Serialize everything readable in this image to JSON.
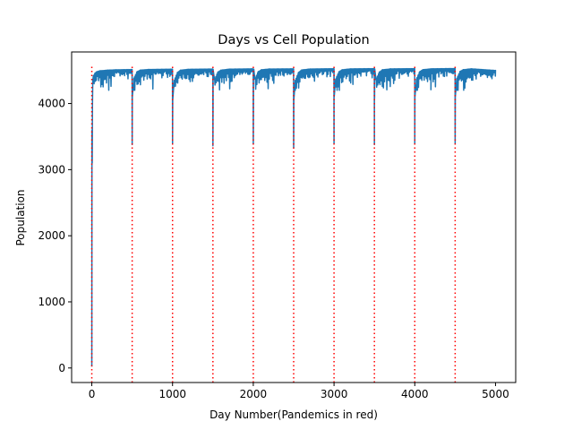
{
  "chart_data": {
    "type": "line",
    "title": "Days vs Cell Population",
    "xlabel": "Day Number(Pandemics in red)",
    "ylabel": "Population",
    "xlim": [
      -250,
      5250
    ],
    "ylim": [
      -220,
      4780
    ],
    "x_ticks": [
      0,
      1000,
      2000,
      3000,
      4000,
      5000
    ],
    "y_ticks": [
      0,
      1000,
      2000,
      3000,
      4000
    ],
    "grid": false,
    "line_color": "#1f77b4",
    "pandemic_color": "#ff0000",
    "pandemic_days": [
      0,
      500,
      1000,
      1500,
      2000,
      2500,
      3000,
      3500,
      4000,
      4500
    ],
    "series": [
      {
        "values_description_x": [
          0,
          5000
        ],
        "points": [
          [
            0,
            20
          ],
          [
            2,
            3600
          ],
          [
            5,
            3100
          ],
          [
            8,
            4000
          ],
          [
            12,
            4350
          ],
          [
            20,
            4420
          ],
          [
            40,
            4460
          ],
          [
            60,
            4480
          ],
          [
            100,
            4495
          ],
          [
            150,
            4500
          ],
          [
            200,
            4505
          ],
          [
            300,
            4510
          ],
          [
            400,
            4512
          ],
          [
            499,
            4515
          ],
          [
            500,
            3380
          ],
          [
            502,
            4100
          ],
          [
            520,
            4380
          ],
          [
            560,
            4480
          ],
          [
            600,
            4505
          ],
          [
            700,
            4515
          ],
          [
            999,
            4520
          ],
          [
            1000,
            3400
          ],
          [
            1002,
            4050
          ],
          [
            1020,
            4350
          ],
          [
            1060,
            4470
          ],
          [
            1100,
            4505
          ],
          [
            1200,
            4518
          ],
          [
            1499,
            4522
          ],
          [
            1500,
            3360
          ],
          [
            1502,
            4080
          ],
          [
            1520,
            4360
          ],
          [
            1560,
            4475
          ],
          [
            1600,
            4505
          ],
          [
            1700,
            4520
          ],
          [
            1999,
            4525
          ],
          [
            2000,
            3390
          ],
          [
            2002,
            4100
          ],
          [
            2020,
            4370
          ],
          [
            2060,
            4480
          ],
          [
            2100,
            4510
          ],
          [
            2200,
            4522
          ],
          [
            2499,
            4525
          ],
          [
            2500,
            3330
          ],
          [
            2502,
            4050
          ],
          [
            2520,
            4350
          ],
          [
            2560,
            4470
          ],
          [
            2600,
            4508
          ],
          [
            2700,
            4522
          ],
          [
            2999,
            4527
          ],
          [
            3000,
            3400
          ],
          [
            3002,
            4100
          ],
          [
            3020,
            4370
          ],
          [
            3060,
            4480
          ],
          [
            3100,
            4510
          ],
          [
            3200,
            4524
          ],
          [
            3499,
            4528
          ],
          [
            3500,
            3380
          ],
          [
            3502,
            4080
          ],
          [
            3520,
            4360
          ],
          [
            3560,
            4475
          ],
          [
            3600,
            4510
          ],
          [
            3700,
            4524
          ],
          [
            3999,
            4528
          ],
          [
            4000,
            3400
          ],
          [
            4002,
            4100
          ],
          [
            4020,
            4370
          ],
          [
            4060,
            4480
          ],
          [
            4100,
            4512
          ],
          [
            4200,
            4525
          ],
          [
            4499,
            4530
          ],
          [
            4500,
            3400
          ],
          [
            4502,
            4100
          ],
          [
            4520,
            4380
          ],
          [
            4560,
            4485
          ],
          [
            4600,
            4512
          ],
          [
            4700,
            4525
          ],
          [
            5000,
            4500
          ]
        ]
      }
    ]
  }
}
